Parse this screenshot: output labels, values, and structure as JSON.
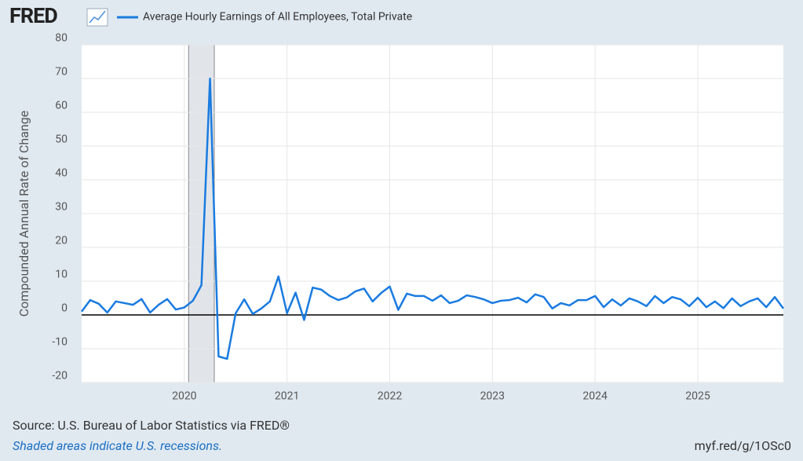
{
  "chart_data": {
    "type": "line",
    "brand": "FRED",
    "ylabel": "Compounded Annual Rate of Change",
    "source": "Source: U.S. Bureau of Labor Statistics via FRED®",
    "note": "Shaded areas indicate U.S. recessions.",
    "link": "myf.red/g/1OSc0",
    "xlim": [
      "2019-01",
      "2025-11"
    ],
    "ylim": [
      -20,
      80
    ],
    "yticks": [
      -20,
      -10,
      0,
      10,
      20,
      30,
      40,
      50,
      60,
      70,
      80
    ],
    "xticks": [
      {
        "value": "2020-01",
        "label": "2020"
      },
      {
        "value": "2021-01",
        "label": "2021"
      },
      {
        "value": "2022-01",
        "label": "2022"
      },
      {
        "value": "2023-01",
        "label": "2023"
      },
      {
        "value": "2024-01",
        "label": "2024"
      },
      {
        "value": "2025-01",
        "label": "2025"
      }
    ],
    "grid": true,
    "recessions": [
      {
        "start": "2020-02",
        "end": "2020-04"
      }
    ],
    "x": [
      "2019-01",
      "2019-02",
      "2019-03",
      "2019-04",
      "2019-05",
      "2019-06",
      "2019-07",
      "2019-08",
      "2019-09",
      "2019-10",
      "2019-11",
      "2019-12",
      "2020-01",
      "2020-02",
      "2020-03",
      "2020-04",
      "2020-05",
      "2020-06",
      "2020-07",
      "2020-08",
      "2020-09",
      "2020-10",
      "2020-11",
      "2020-12",
      "2021-01",
      "2021-02",
      "2021-03",
      "2021-04",
      "2021-05",
      "2021-06",
      "2021-07",
      "2021-08",
      "2021-09",
      "2021-10",
      "2021-11",
      "2021-12",
      "2022-01",
      "2022-02",
      "2022-03",
      "2022-04",
      "2022-05",
      "2022-06",
      "2022-07",
      "2022-08",
      "2022-09",
      "2022-10",
      "2022-11",
      "2022-12",
      "2023-01",
      "2023-02",
      "2023-03",
      "2023-04",
      "2023-05",
      "2023-06",
      "2023-07",
      "2023-08",
      "2023-09",
      "2023-10",
      "2023-11",
      "2023-12",
      "2024-01",
      "2024-02",
      "2024-03",
      "2024-04",
      "2024-05",
      "2024-06",
      "2024-07",
      "2024-08",
      "2024-09",
      "2024-10",
      "2024-11",
      "2024-12",
      "2025-01",
      "2025-02",
      "2025-03",
      "2025-04",
      "2025-05",
      "2025-06",
      "2025-07",
      "2025-08",
      "2025-09",
      "2025-10",
      "2025-11"
    ],
    "series": [
      {
        "name": "Average Hourly Earnings of All Employees, Total Private",
        "color": "#1a7be0",
        "values": [
          1,
          4.4,
          3.3,
          0.7,
          4,
          3.5,
          3,
          4.7,
          0.7,
          3,
          4.7,
          1.6,
          2.2,
          4.2,
          8.8,
          70,
          -12.3,
          -13,
          0.5,
          4.6,
          0.3,
          1.9,
          4,
          11.4,
          0.5,
          6.6,
          -1.5,
          8.1,
          7.5,
          5.6,
          4.4,
          5.2,
          7,
          7.8,
          4,
          6.5,
          8.4,
          1.5,
          6.3,
          5.6,
          5.6,
          4.2,
          5.8,
          3.5,
          4.2,
          5.8,
          5.3,
          4.6,
          3.5,
          4.2,
          4.4,
          5.1,
          3.7,
          6.1,
          5.3,
          1.9,
          3.5,
          2.8,
          4.4,
          4.4,
          5.6,
          2.3,
          4.6,
          2.8,
          4.9,
          4,
          2.6,
          5.6,
          3.5,
          5.3,
          4.6,
          2.6,
          5.1,
          2.3,
          4,
          2,
          4.9,
          2.6,
          4,
          4.9,
          2.3,
          5.3,
          1.9
        ]
      }
    ]
  }
}
